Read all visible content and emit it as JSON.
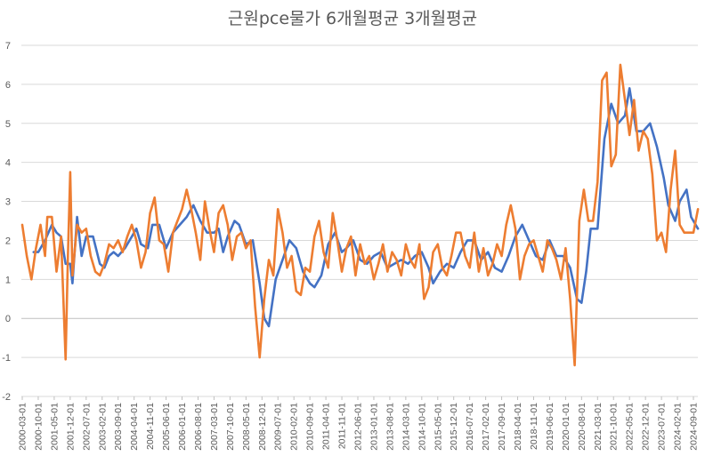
{
  "chart_data": {
    "type": "line",
    "title": "근원pce물가 6개월평균 3개월평균",
    "xlabel": "",
    "ylabel": "",
    "ylim": [
      -2,
      7
    ],
    "yticks": [
      -2,
      -1,
      0,
      1,
      2,
      3,
      4,
      5,
      6,
      7
    ],
    "grid": true,
    "legend": "none",
    "xtick_labels": [
      "2000-03-01",
      "2000-10-01",
      "2001-05-01",
      "2001-12-01",
      "2002-07-01",
      "2003-02-01",
      "2003-09-01",
      "2004-04-01",
      "2004-11-01",
      "2005-06-01",
      "2006-01-01",
      "2006-08-01",
      "2007-03-01",
      "2007-10-01",
      "2008-05-01",
      "2008-12-01",
      "2009-07-01",
      "2010-02-01",
      "2010-09-01",
      "2011-04-01",
      "2011-11-01",
      "2012-06-01",
      "2013-01-01",
      "2013-08-01",
      "2014-03-01",
      "2014-10-01",
      "2015-05-01",
      "2015-12-01",
      "2016-07-01",
      "2017-02-01",
      "2017-09-01",
      "2018-04-01",
      "2018-11-01",
      "2019-06-01",
      "2020-01-01",
      "2020-08-01",
      "2021-03-01",
      "2021-10-01",
      "2022-05-01",
      "2022-12-01",
      "2023-07-01",
      "2024-02-01",
      "2024-09-01"
    ],
    "series": [
      {
        "color": "#4472C4",
        "points": [
          [
            "2000-08",
            1.7
          ],
          [
            "2000-10",
            1.7
          ],
          [
            "2001-01",
            2.0
          ],
          [
            "2001-04",
            2.4
          ],
          [
            "2001-06",
            2.2
          ],
          [
            "2001-08",
            2.1
          ],
          [
            "2001-10",
            1.4
          ],
          [
            "2001-12",
            1.4
          ],
          [
            "2002-01",
            0.9
          ],
          [
            "2002-03",
            2.6
          ],
          [
            "2002-05",
            1.6
          ],
          [
            "2002-07",
            2.1
          ],
          [
            "2002-10",
            2.1
          ],
          [
            "2003-01",
            1.4
          ],
          [
            "2003-03",
            1.3
          ],
          [
            "2003-05",
            1.6
          ],
          [
            "2003-07",
            1.7
          ],
          [
            "2003-09",
            1.6
          ],
          [
            "2003-12",
            1.8
          ],
          [
            "2004-03",
            2.1
          ],
          [
            "2004-05",
            2.3
          ],
          [
            "2004-07",
            1.9
          ],
          [
            "2004-10",
            1.8
          ],
          [
            "2004-12",
            2.4
          ],
          [
            "2005-03",
            2.4
          ],
          [
            "2005-06",
            1.8
          ],
          [
            "2005-09",
            2.2
          ],
          [
            "2005-12",
            2.4
          ],
          [
            "2006-03",
            2.6
          ],
          [
            "2006-06",
            2.9
          ],
          [
            "2006-09",
            2.5
          ],
          [
            "2006-12",
            2.2
          ],
          [
            "2007-03",
            2.2
          ],
          [
            "2007-05",
            2.3
          ],
          [
            "2007-07",
            1.7
          ],
          [
            "2007-09",
            2.1
          ],
          [
            "2007-12",
            2.5
          ],
          [
            "2008-02",
            2.4
          ],
          [
            "2008-05",
            1.9
          ],
          [
            "2008-08",
            2.0
          ],
          [
            "2008-11",
            0.9
          ],
          [
            "2009-01",
            0.0
          ],
          [
            "2009-03",
            -0.2
          ],
          [
            "2009-06",
            1.0
          ],
          [
            "2009-09",
            1.5
          ],
          [
            "2009-12",
            2.0
          ],
          [
            "2010-03",
            1.8
          ],
          [
            "2010-06",
            1.2
          ],
          [
            "2010-09",
            0.9
          ],
          [
            "2010-11",
            0.8
          ],
          [
            "2011-02",
            1.1
          ],
          [
            "2011-05",
            1.9
          ],
          [
            "2011-08",
            2.2
          ],
          [
            "2011-11",
            1.7
          ],
          [
            "2012-01",
            1.8
          ],
          [
            "2012-04",
            2.0
          ],
          [
            "2012-07",
            1.5
          ],
          [
            "2012-10",
            1.4
          ],
          [
            "2013-01",
            1.6
          ],
          [
            "2013-04",
            1.7
          ],
          [
            "2013-07",
            1.3
          ],
          [
            "2013-10",
            1.4
          ],
          [
            "2014-01",
            1.5
          ],
          [
            "2014-04",
            1.4
          ],
          [
            "2014-07",
            1.6
          ],
          [
            "2014-10",
            1.7
          ],
          [
            "2015-01",
            1.3
          ],
          [
            "2015-03",
            0.9
          ],
          [
            "2015-06",
            1.2
          ],
          [
            "2015-09",
            1.4
          ],
          [
            "2015-12",
            1.3
          ],
          [
            "2016-03",
            1.7
          ],
          [
            "2016-06",
            2.0
          ],
          [
            "2016-09",
            2.0
          ],
          [
            "2016-12",
            1.5
          ],
          [
            "2017-03",
            1.7
          ],
          [
            "2017-06",
            1.3
          ],
          [
            "2017-09",
            1.2
          ],
          [
            "2017-12",
            1.6
          ],
          [
            "2018-03",
            2.1
          ],
          [
            "2018-06",
            2.4
          ],
          [
            "2018-09",
            2.0
          ],
          [
            "2018-12",
            1.6
          ],
          [
            "2019-03",
            1.5
          ],
          [
            "2019-06",
            2.0
          ],
          [
            "2019-09",
            1.6
          ],
          [
            "2019-12",
            1.6
          ],
          [
            "2020-03",
            1.3
          ],
          [
            "2020-06",
            0.5
          ],
          [
            "2020-08",
            0.4
          ],
          [
            "2020-10",
            1.2
          ],
          [
            "2020-12",
            2.3
          ],
          [
            "2021-03",
            2.3
          ],
          [
            "2021-06",
            4.6
          ],
          [
            "2021-09",
            5.5
          ],
          [
            "2021-12",
            5.0
          ],
          [
            "2022-03",
            5.2
          ],
          [
            "2022-05",
            5.9
          ],
          [
            "2022-08",
            4.8
          ],
          [
            "2022-11",
            4.8
          ],
          [
            "2023-02",
            5.0
          ],
          [
            "2023-05",
            4.4
          ],
          [
            "2023-08",
            3.6
          ],
          [
            "2023-10",
            2.9
          ],
          [
            "2024-01",
            2.5
          ],
          [
            "2024-03",
            3.0
          ],
          [
            "2024-06",
            3.3
          ],
          [
            "2024-08",
            2.6
          ],
          [
            "2024-11",
            2.3
          ]
        ]
      },
      {
        "color": "#ED7D31",
        "points": [
          [
            "2000-03",
            2.4
          ],
          [
            "2000-05",
            1.6
          ],
          [
            "2000-07",
            1.0
          ],
          [
            "2000-09",
            1.8
          ],
          [
            "2000-11",
            2.4
          ],
          [
            "2001-01",
            1.6
          ],
          [
            "2001-02",
            2.6
          ],
          [
            "2001-04",
            2.6
          ],
          [
            "2001-06",
            1.2
          ],
          [
            "2001-08",
            2.1
          ],
          [
            "2001-10",
            -1.05
          ],
          [
            "2001-11",
            1.6
          ],
          [
            "2001-12",
            3.75
          ],
          [
            "2002-01",
            1.1
          ],
          [
            "2002-03",
            2.4
          ],
          [
            "2002-05",
            2.2
          ],
          [
            "2002-07",
            2.3
          ],
          [
            "2002-09",
            1.6
          ],
          [
            "2002-11",
            1.2
          ],
          [
            "2003-01",
            1.1
          ],
          [
            "2003-03",
            1.4
          ],
          [
            "2003-05",
            1.9
          ],
          [
            "2003-07",
            1.8
          ],
          [
            "2003-09",
            2.0
          ],
          [
            "2003-11",
            1.7
          ],
          [
            "2004-01",
            2.1
          ],
          [
            "2004-03",
            2.4
          ],
          [
            "2004-05",
            2.0
          ],
          [
            "2004-07",
            1.3
          ],
          [
            "2004-09",
            1.7
          ],
          [
            "2004-11",
            2.7
          ],
          [
            "2005-01",
            3.1
          ],
          [
            "2005-03",
            2.0
          ],
          [
            "2005-05",
            1.9
          ],
          [
            "2005-07",
            1.2
          ],
          [
            "2005-09",
            2.2
          ],
          [
            "2005-11",
            2.5
          ],
          [
            "2006-01",
            2.8
          ],
          [
            "2006-03",
            3.3
          ],
          [
            "2006-05",
            2.8
          ],
          [
            "2006-07",
            2.2
          ],
          [
            "2006-09",
            1.5
          ],
          [
            "2006-11",
            3.0
          ],
          [
            "2007-01",
            2.3
          ],
          [
            "2007-03",
            1.7
          ],
          [
            "2007-05",
            2.7
          ],
          [
            "2007-07",
            2.9
          ],
          [
            "2007-09",
            2.4
          ],
          [
            "2007-11",
            1.5
          ],
          [
            "2008-01",
            2.1
          ],
          [
            "2008-03",
            2.2
          ],
          [
            "2008-05",
            1.8
          ],
          [
            "2008-07",
            2.0
          ],
          [
            "2008-09",
            0.3
          ],
          [
            "2008-11",
            -1.0
          ],
          [
            "2009-01",
            0.5
          ],
          [
            "2009-03",
            1.5
          ],
          [
            "2009-05",
            1.1
          ],
          [
            "2009-07",
            2.8
          ],
          [
            "2009-09",
            2.2
          ],
          [
            "2009-11",
            1.3
          ],
          [
            "2010-01",
            1.6
          ],
          [
            "2010-03",
            0.7
          ],
          [
            "2010-05",
            0.6
          ],
          [
            "2010-07",
            1.3
          ],
          [
            "2010-09",
            1.2
          ],
          [
            "2010-11",
            2.1
          ],
          [
            "2011-01",
            2.5
          ],
          [
            "2011-03",
            1.7
          ],
          [
            "2011-05",
            1.3
          ],
          [
            "2011-07",
            2.7
          ],
          [
            "2011-09",
            2.0
          ],
          [
            "2011-11",
            1.2
          ],
          [
            "2012-01",
            1.8
          ],
          [
            "2012-03",
            2.1
          ],
          [
            "2012-05",
            1.1
          ],
          [
            "2012-07",
            1.9
          ],
          [
            "2012-09",
            1.4
          ],
          [
            "2012-11",
            1.6
          ],
          [
            "2013-01",
            1.0
          ],
          [
            "2013-03",
            1.4
          ],
          [
            "2013-05",
            1.9
          ],
          [
            "2013-07",
            1.2
          ],
          [
            "2013-09",
            1.7
          ],
          [
            "2013-11",
            1.5
          ],
          [
            "2014-01",
            1.1
          ],
          [
            "2014-03",
            1.9
          ],
          [
            "2014-05",
            1.5
          ],
          [
            "2014-07",
            1.3
          ],
          [
            "2014-09",
            1.9
          ],
          [
            "2014-11",
            0.5
          ],
          [
            "2015-01",
            0.8
          ],
          [
            "2015-03",
            1.7
          ],
          [
            "2015-05",
            1.9
          ],
          [
            "2015-07",
            1.3
          ],
          [
            "2015-09",
            1.1
          ],
          [
            "2015-11",
            1.6
          ],
          [
            "2016-01",
            2.2
          ],
          [
            "2016-03",
            2.2
          ],
          [
            "2016-05",
            1.6
          ],
          [
            "2016-07",
            1.3
          ],
          [
            "2016-09",
            2.2
          ],
          [
            "2016-11",
            1.2
          ],
          [
            "2017-01",
            1.8
          ],
          [
            "2017-03",
            1.1
          ],
          [
            "2017-05",
            1.4
          ],
          [
            "2017-07",
            1.9
          ],
          [
            "2017-09",
            1.6
          ],
          [
            "2017-11",
            2.4
          ],
          [
            "2018-01",
            2.9
          ],
          [
            "2018-03",
            2.3
          ],
          [
            "2018-05",
            1.0
          ],
          [
            "2018-07",
            1.6
          ],
          [
            "2018-09",
            1.9
          ],
          [
            "2018-11",
            2.0
          ],
          [
            "2019-01",
            1.6
          ],
          [
            "2019-03",
            1.2
          ],
          [
            "2019-05",
            2.0
          ],
          [
            "2019-07",
            1.8
          ],
          [
            "2019-09",
            1.5
          ],
          [
            "2019-11",
            1.0
          ],
          [
            "2020-01",
            1.8
          ],
          [
            "2020-03",
            0.5
          ],
          [
            "2020-05",
            -1.2
          ],
          [
            "2020-07",
            2.5
          ],
          [
            "2020-09",
            3.3
          ],
          [
            "2020-11",
            2.5
          ],
          [
            "2021-01",
            2.5
          ],
          [
            "2021-03",
            3.5
          ],
          [
            "2021-05",
            6.1
          ],
          [
            "2021-07",
            6.3
          ],
          [
            "2021-09",
            3.9
          ],
          [
            "2021-11",
            4.2
          ],
          [
            "2022-01",
            6.5
          ],
          [
            "2022-03",
            5.6
          ],
          [
            "2022-05",
            4.7
          ],
          [
            "2022-07",
            5.6
          ],
          [
            "2022-09",
            4.3
          ],
          [
            "2022-11",
            4.8
          ],
          [
            "2023-01",
            4.6
          ],
          [
            "2023-03",
            3.7
          ],
          [
            "2023-05",
            2.0
          ],
          [
            "2023-07",
            2.2
          ],
          [
            "2023-09",
            1.7
          ],
          [
            "2023-11",
            3.3
          ],
          [
            "2024-01",
            4.3
          ],
          [
            "2024-03",
            2.4
          ],
          [
            "2024-05",
            2.2
          ],
          [
            "2024-07",
            2.2
          ],
          [
            "2024-09",
            2.2
          ],
          [
            "2024-11",
            2.8
          ]
        ]
      }
    ]
  }
}
